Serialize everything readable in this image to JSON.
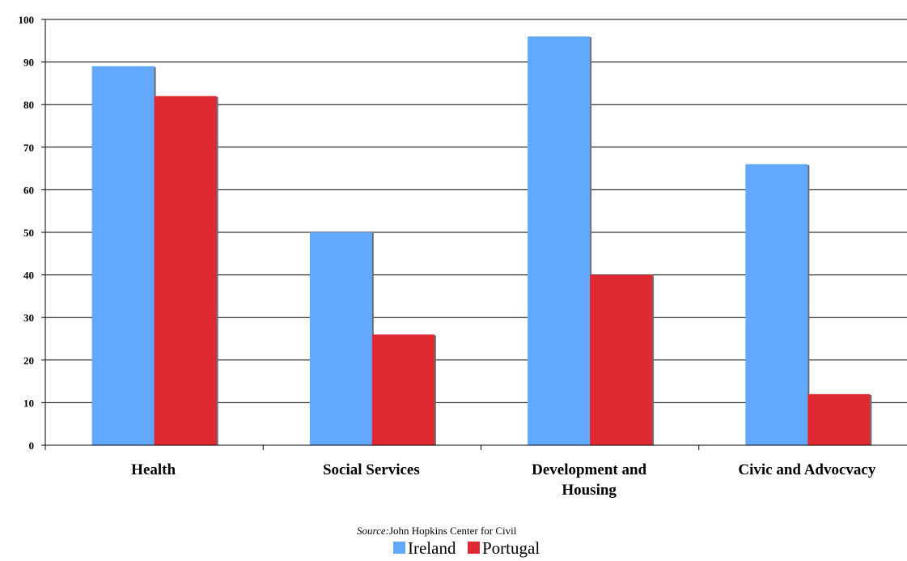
{
  "chart_data": {
    "type": "bar",
    "categories": [
      [
        "Health"
      ],
      [
        "Social Services"
      ],
      [
        "Development and",
        "Housing"
      ],
      [
        "Civic and Advocvacy"
      ]
    ],
    "series": [
      {
        "name": "Ireland",
        "values": [
          89,
          50,
          96,
          66
        ],
        "color": "#63a8ff"
      },
      {
        "name": "Portugal",
        "values": [
          82,
          26,
          40,
          12
        ],
        "color": "#e02a33"
      }
    ],
    "ylim": [
      0,
      100
    ],
    "yticks": [
      0,
      10,
      20,
      30,
      40,
      50,
      60,
      70,
      80,
      90,
      100
    ],
    "grid": true,
    "legend_position": "bottom-center",
    "source_label": "Source:",
    "source_text": "John Hopkins Center for Civil"
  }
}
